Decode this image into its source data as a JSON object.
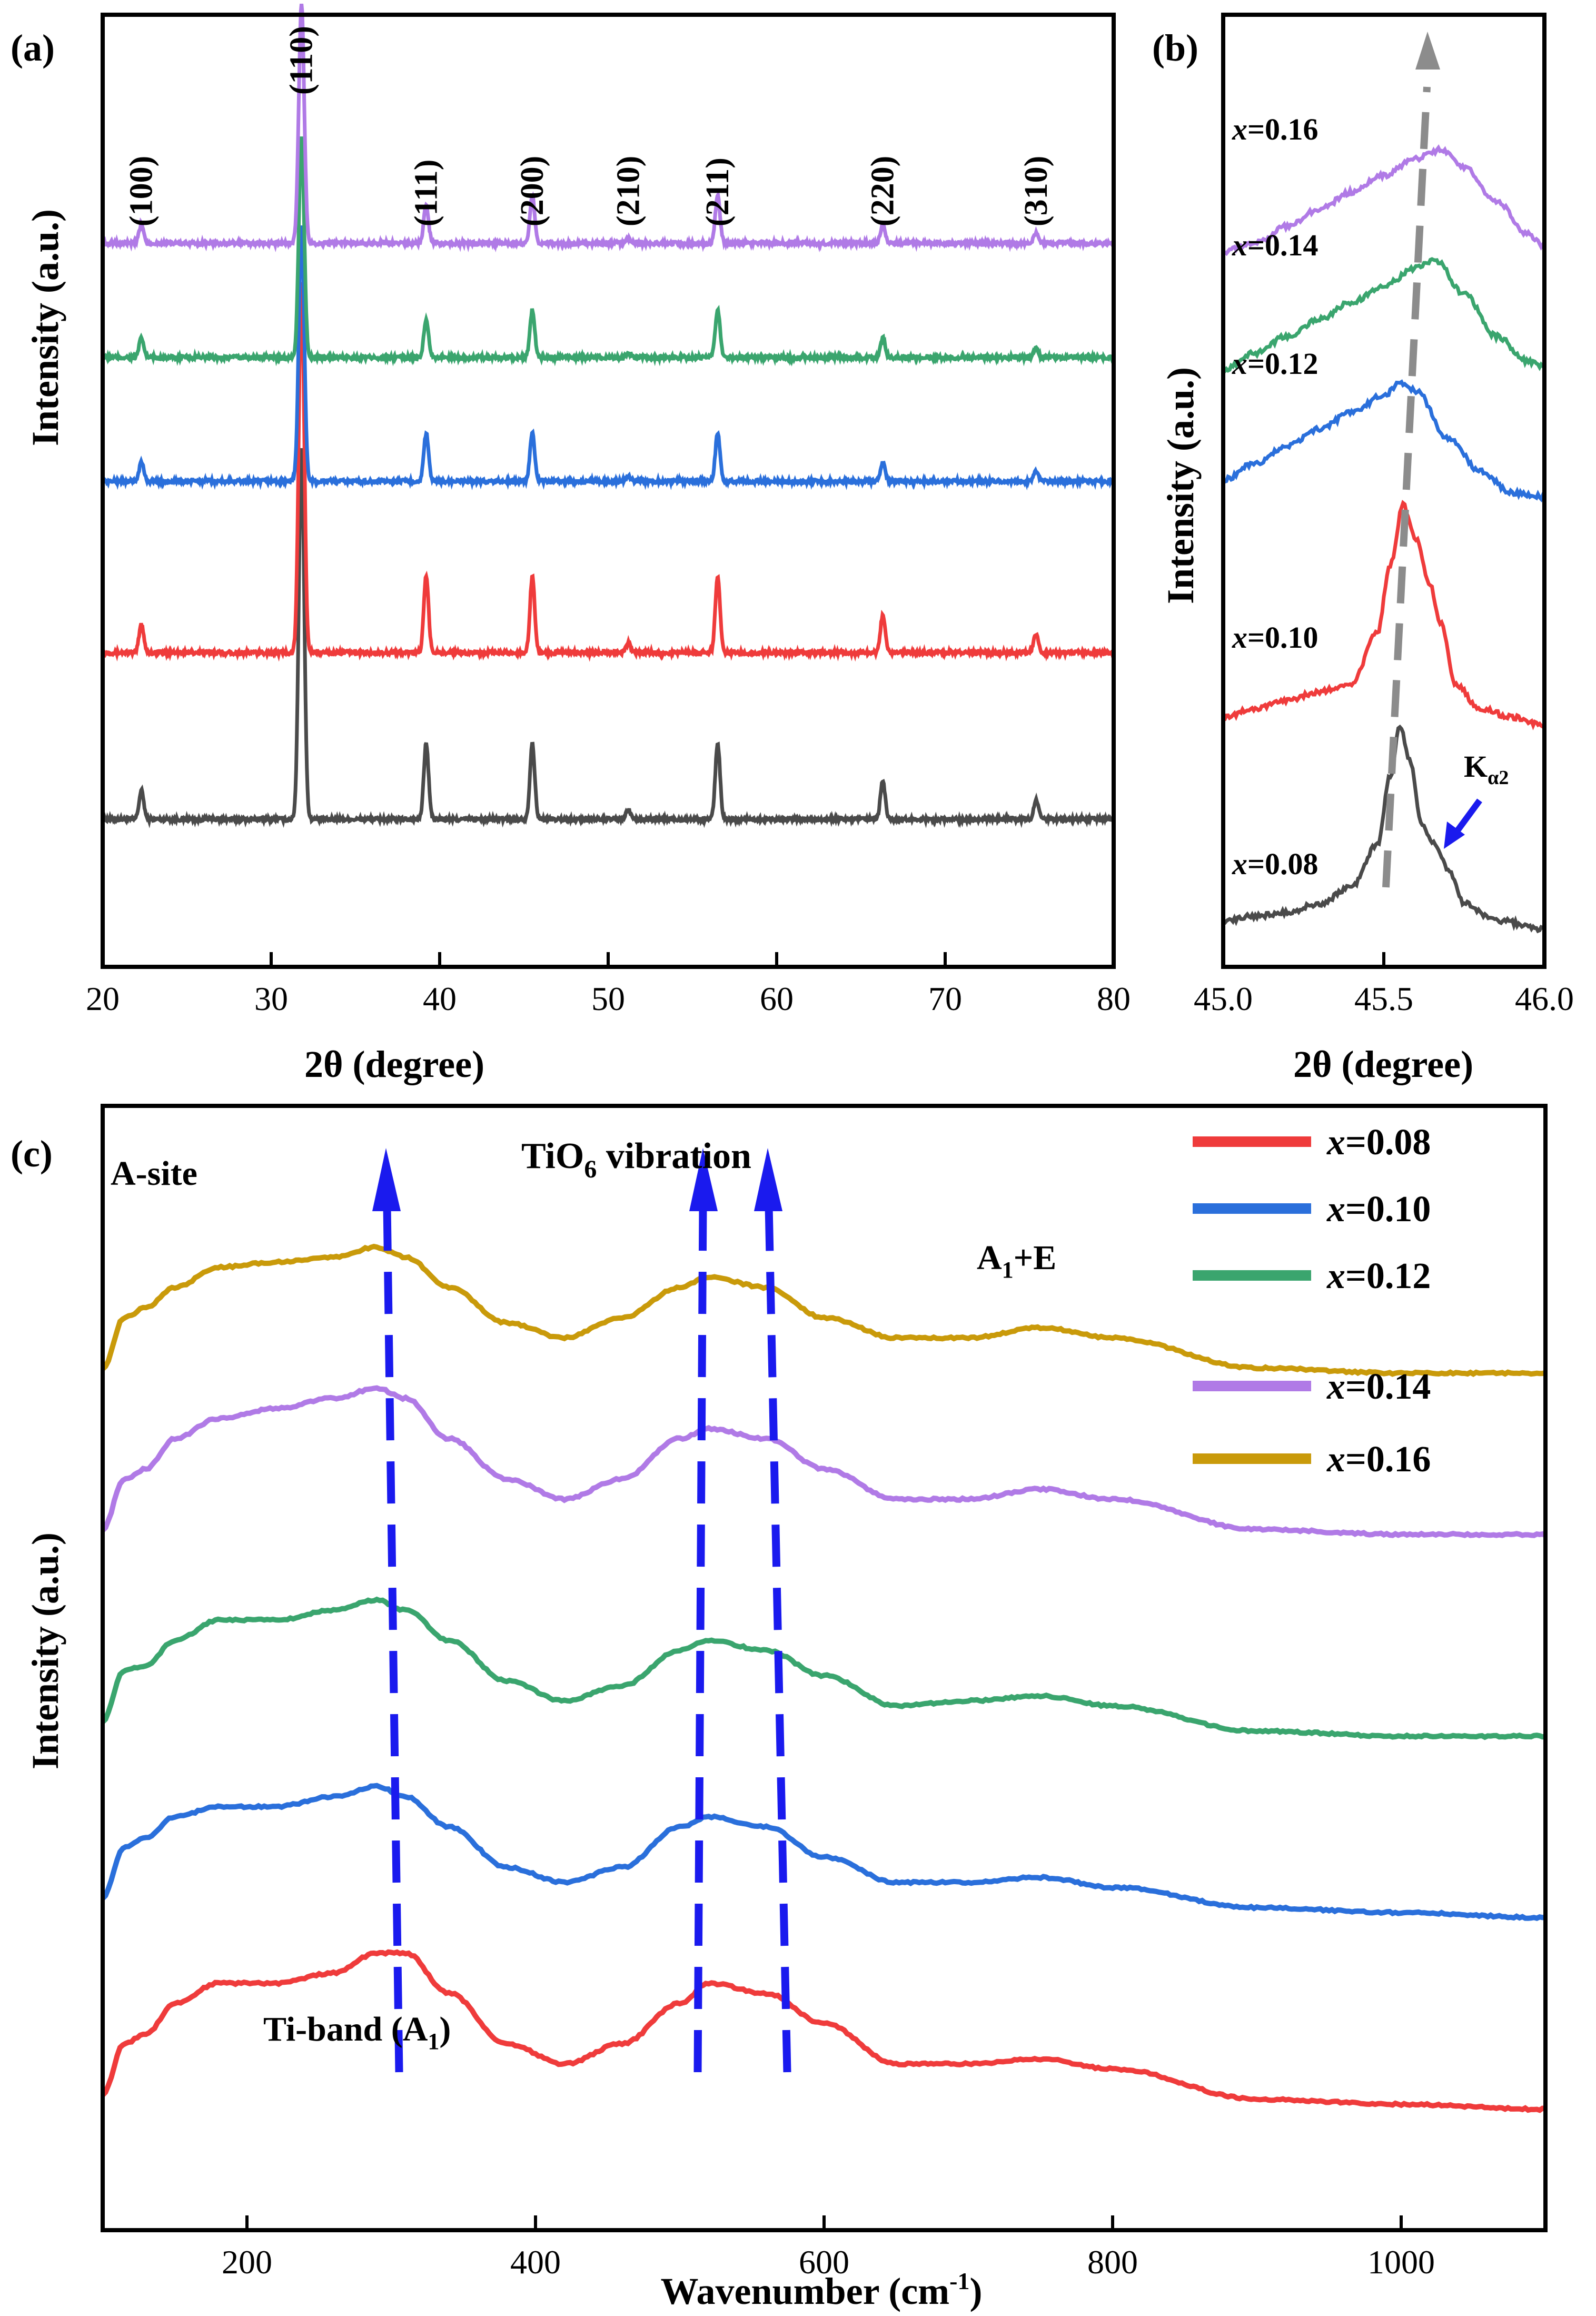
{
  "colors": {
    "gray": "#4a4a4a",
    "red": "#ef3b3b",
    "blue": "#2a6fdb",
    "green": "#3aa56e",
    "purple": "#b07ae6",
    "gold": "#c99a0a",
    "dash_gray": "#8c8c8c",
    "dash_blue": "#1a1aee",
    "axis": "#000000"
  },
  "chart_data": [
    {
      "panel": "(a)",
      "type": "line",
      "title": "",
      "xlabel": "2θ (degree)",
      "ylabel": "Intensity (a.u.)",
      "xlim": [
        20,
        80
      ],
      "ylim": [
        0,
        1
      ],
      "x_ticks": [
        20,
        30,
        40,
        50,
        60,
        70,
        80
      ],
      "grid": false,
      "peak_labels": [
        {
          "label": "(100)",
          "x": 22.3
        },
        {
          "label": "(110)",
          "x": 31.8
        },
        {
          "label": "(111)",
          "x": 39.2
        },
        {
          "label": "(200)",
          "x": 45.5
        },
        {
          "label": "(210)",
          "x": 51.2
        },
        {
          "label": "(211)",
          "x": 56.5
        },
        {
          "label": "(220)",
          "x": 66.3
        },
        {
          "label": "(310)",
          "x": 75.4
        }
      ],
      "peaks": [
        22.3,
        31.8,
        39.2,
        45.5,
        51.2,
        56.5,
        66.3,
        75.4
      ],
      "series": [
        {
          "name": "x=0.08",
          "color": "gray",
          "baseline": 0.155,
          "heights": [
            0.03,
            0.39,
            0.08,
            0.08,
            0.01,
            0.08,
            0.04,
            0.02
          ]
        },
        {
          "name": "x=0.10",
          "color": "red",
          "baseline": 0.33,
          "heights": [
            0.03,
            0.39,
            0.08,
            0.08,
            0.01,
            0.08,
            0.04,
            0.02
          ]
        },
        {
          "name": "x=0.12",
          "color": "blue",
          "baseline": 0.51,
          "heights": [
            0.02,
            0.27,
            0.05,
            0.05,
            0.005,
            0.05,
            0.02,
            0.01
          ]
        },
        {
          "name": "x=0.14",
          "color": "green",
          "baseline": 0.64,
          "heights": [
            0.02,
            0.23,
            0.04,
            0.05,
            0.005,
            0.05,
            0.02,
            0.01
          ]
        },
        {
          "name": "x=0.16",
          "color": "purple",
          "baseline": 0.76,
          "heights": [
            0.02,
            0.25,
            0.04,
            0.05,
            0.005,
            0.05,
            0.02,
            0.01
          ]
        }
      ]
    },
    {
      "panel": "(b)",
      "type": "line",
      "title": "",
      "xlabel": "2θ (degree)",
      "ylabel": "Intensity (a.u.)",
      "xlim": [
        45.0,
        46.0
      ],
      "ylim": [
        0,
        1
      ],
      "x_ticks": [
        "45.0",
        "45.5",
        "46.0"
      ],
      "grid": false,
      "annotation": "Kα2",
      "series": [
        {
          "name": "x=0.08",
          "color": "gray",
          "baseline": 0.01,
          "points": [
            [
              45.0,
              0.03
            ],
            [
              45.1,
              0.035
            ],
            [
              45.2,
              0.04
            ],
            [
              45.3,
              0.05
            ],
            [
              45.4,
              0.07
            ],
            [
              45.48,
              0.12
            ],
            [
              45.52,
              0.2
            ],
            [
              45.55,
              0.26
            ],
            [
              45.58,
              0.22
            ],
            [
              45.62,
              0.14
            ],
            [
              45.66,
              0.12
            ],
            [
              45.7,
              0.09
            ],
            [
              45.75,
              0.05
            ],
            [
              45.85,
              0.03
            ],
            [
              46.0,
              0.02
            ]
          ]
        },
        {
          "name": "x=0.10",
          "color": "red",
          "baseline": 0.25,
          "points": [
            [
              45.0,
              0.27
            ],
            [
              45.1,
              0.28
            ],
            [
              45.2,
              0.29
            ],
            [
              45.3,
              0.3
            ],
            [
              45.4,
              0.31
            ],
            [
              45.48,
              0.37
            ],
            [
              45.52,
              0.45
            ],
            [
              45.56,
              0.52
            ],
            [
              45.6,
              0.48
            ],
            [
              45.64,
              0.43
            ],
            [
              45.68,
              0.38
            ],
            [
              45.72,
              0.31
            ],
            [
              45.8,
              0.28
            ],
            [
              45.9,
              0.27
            ],
            [
              46.0,
              0.26
            ]
          ]
        },
        {
          "name": "x=0.12",
          "color": "blue",
          "baseline": 0.5,
          "points": [
            [
              45.0,
              0.55
            ],
            [
              45.1,
              0.57
            ],
            [
              45.2,
              0.59
            ],
            [
              45.3,
              0.61
            ],
            [
              45.4,
              0.63
            ],
            [
              45.5,
              0.65
            ],
            [
              45.55,
              0.665
            ],
            [
              45.6,
              0.655
            ],
            [
              45.7,
              0.6
            ],
            [
              45.8,
              0.56
            ],
            [
              45.9,
              0.535
            ],
            [
              46.0,
              0.53
            ]
          ]
        },
        {
          "name": "x=0.14",
          "color": "green",
          "baseline": 0.66,
          "points": [
            [
              45.0,
              0.68
            ],
            [
              45.1,
              0.7
            ],
            [
              45.2,
              0.72
            ],
            [
              45.3,
              0.74
            ],
            [
              45.4,
              0.76
            ],
            [
              45.5,
              0.78
            ],
            [
              45.6,
              0.8
            ],
            [
              45.66,
              0.81
            ],
            [
              45.75,
              0.77
            ],
            [
              45.85,
              0.72
            ],
            [
              45.95,
              0.69
            ],
            [
              46.0,
              0.685
            ]
          ]
        },
        {
          "name": "x=0.16",
          "color": "purple",
          "baseline": 0.8,
          "points": [
            [
              45.0,
              0.82
            ],
            [
              45.1,
              0.83
            ],
            [
              45.2,
              0.85
            ],
            [
              45.3,
              0.87
            ],
            [
              45.4,
              0.89
            ],
            [
              45.5,
              0.91
            ],
            [
              45.6,
              0.93
            ],
            [
              45.68,
              0.94
            ],
            [
              45.75,
              0.92
            ],
            [
              45.85,
              0.88
            ],
            [
              45.95,
              0.84
            ],
            [
              46.0,
              0.825
            ]
          ]
        }
      ],
      "labels": [
        "x=0.08",
        "x=0.10",
        "x=0.12",
        "x=0.14",
        "x=0.16"
      ]
    },
    {
      "panel": "(c)",
      "type": "line",
      "title": "",
      "xlabel": "Wavenumber (cm⁻¹)",
      "ylabel": "Intensity (a.u.)",
      "xlim": [
        100,
        1100
      ],
      "ylim": [
        0,
        1
      ],
      "x_ticks": [
        200,
        400,
        600,
        800,
        1000
      ],
      "grid": false,
      "legend": [
        "x=0.08",
        "x=0.10",
        "x=0.12",
        "x=0.14",
        "x=0.16"
      ],
      "legend_position": "top-right",
      "annotations": [
        "A-site",
        "TiO6 vibration",
        "A1+E",
        "Ti-band (A1)"
      ],
      "series": [
        {
          "name": "x=0.08",
          "color": "red",
          "offset": 0.0,
          "points": [
            [
              100,
              0.02
            ],
            [
              115,
              0.07
            ],
            [
              130,
              0.08
            ],
            [
              150,
              0.11
            ],
            [
              180,
              0.13
            ],
            [
              220,
              0.13
            ],
            [
              260,
              0.14
            ],
            [
              290,
              0.16
            ],
            [
              310,
              0.16
            ],
            [
              340,
              0.12
            ],
            [
              380,
              0.07
            ],
            [
              420,
              0.05
            ],
            [
              460,
              0.07
            ],
            [
              500,
              0.11
            ],
            [
              520,
              0.13
            ],
            [
              560,
              0.12
            ],
            [
              600,
              0.09
            ],
            [
              650,
              0.05
            ],
            [
              700,
              0.05
            ],
            [
              750,
              0.055
            ],
            [
              800,
              0.045
            ],
            [
              900,
              0.015
            ],
            [
              1000,
              0.01
            ],
            [
              1100,
              0.005
            ]
          ]
        },
        {
          "name": "x=0.10",
          "color": "blue",
          "offset": 0.195,
          "points": [
            [
              100,
              0.02
            ],
            [
              115,
              0.07
            ],
            [
              130,
              0.08
            ],
            [
              150,
              0.1
            ],
            [
              180,
              0.11
            ],
            [
              220,
              0.11
            ],
            [
              260,
              0.12
            ],
            [
              290,
              0.13
            ],
            [
              310,
              0.12
            ],
            [
              340,
              0.09
            ],
            [
              380,
              0.05
            ],
            [
              420,
              0.035
            ],
            [
              460,
              0.05
            ],
            [
              500,
              0.09
            ],
            [
              520,
              0.1
            ],
            [
              560,
              0.09
            ],
            [
              600,
              0.06
            ],
            [
              650,
              0.035
            ],
            [
              700,
              0.035
            ],
            [
              750,
              0.04
            ],
            [
              800,
              0.03
            ],
            [
              900,
              0.01
            ],
            [
              1000,
              0.005
            ],
            [
              1100,
              0.0
            ]
          ]
        },
        {
          "name": "x=0.12",
          "color": "green",
          "offset": 0.37,
          "points": [
            [
              100,
              0.02
            ],
            [
              115,
              0.07
            ],
            [
              130,
              0.075
            ],
            [
              150,
              0.1
            ],
            [
              180,
              0.12
            ],
            [
              220,
              0.12
            ],
            [
              260,
              0.13
            ],
            [
              290,
              0.14
            ],
            [
              310,
              0.13
            ],
            [
              340,
              0.1
            ],
            [
              380,
              0.06
            ],
            [
              420,
              0.04
            ],
            [
              460,
              0.055
            ],
            [
              500,
              0.09
            ],
            [
              520,
              0.1
            ],
            [
              560,
              0.09
            ],
            [
              600,
              0.065
            ],
            [
              650,
              0.035
            ],
            [
              700,
              0.04
            ],
            [
              750,
              0.045
            ],
            [
              800,
              0.035
            ],
            [
              900,
              0.01
            ],
            [
              1000,
              0.005
            ],
            [
              1100,
              0.005
            ]
          ]
        },
        {
          "name": "x=0.14",
          "color": "purple",
          "offset": 0.56,
          "points": [
            [
              100,
              0.02
            ],
            [
              115,
              0.07
            ],
            [
              130,
              0.08
            ],
            [
              150,
              0.11
            ],
            [
              180,
              0.13
            ],
            [
              220,
              0.14
            ],
            [
              260,
              0.15
            ],
            [
              290,
              0.16
            ],
            [
              310,
              0.15
            ],
            [
              340,
              0.11
            ],
            [
              380,
              0.07
            ],
            [
              420,
              0.05
            ],
            [
              460,
              0.07
            ],
            [
              500,
              0.11
            ],
            [
              520,
              0.12
            ],
            [
              560,
              0.11
            ],
            [
              600,
              0.08
            ],
            [
              650,
              0.05
            ],
            [
              700,
              0.05
            ],
            [
              750,
              0.06
            ],
            [
              800,
              0.05
            ],
            [
              900,
              0.02
            ],
            [
              1000,
              0.015
            ],
            [
              1100,
              0.015
            ]
          ]
        },
        {
          "name": "x=0.16",
          "color": "gold",
          "offset": 0.72,
          "points": [
            [
              100,
              0.02
            ],
            [
              115,
              0.07
            ],
            [
              130,
              0.08
            ],
            [
              150,
              0.1
            ],
            [
              180,
              0.12
            ],
            [
              220,
              0.125
            ],
            [
              260,
              0.13
            ],
            [
              290,
              0.14
            ],
            [
              310,
              0.13
            ],
            [
              340,
              0.1
            ],
            [
              380,
              0.065
            ],
            [
              420,
              0.05
            ],
            [
              460,
              0.07
            ],
            [
              500,
              0.1
            ],
            [
              520,
              0.11
            ],
            [
              560,
              0.1
            ],
            [
              600,
              0.07
            ],
            [
              650,
              0.05
            ],
            [
              700,
              0.05
            ],
            [
              750,
              0.06
            ],
            [
              800,
              0.05
            ],
            [
              900,
              0.02
            ],
            [
              1000,
              0.015
            ],
            [
              1100,
              0.015
            ]
          ]
        }
      ]
    }
  ],
  "annotation_text": {
    "ka2_main": "K",
    "ka2_sub": "α2",
    "tio6_main": "TiO",
    "tio6_sub": "6",
    "tio6_rest": " vibration",
    "a1e_main": "A",
    "a1e_sub": "1",
    "a1e_rest": "+E",
    "tiband_main": "Ti-band (A",
    "tiband_sub": "1",
    "tiband_rest": ")",
    "asite": "A-site",
    "wn_label_main": "Wavenumber (cm",
    "wn_label_sup": "-1",
    "wn_label_rest": ")"
  }
}
